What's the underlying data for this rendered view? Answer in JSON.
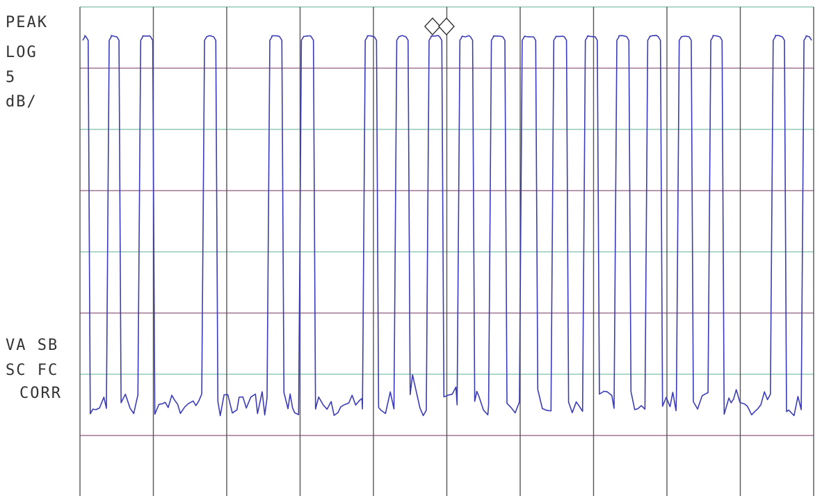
{
  "annotations": {
    "detector": "PEAK",
    "scale_mode": "LOG",
    "scale_value": "5",
    "scale_unit": "dB/",
    "status_1": "VA SB",
    "status_2": "SC FC",
    "status_3": "CORR"
  },
  "colors": {
    "trace": "#3b3bb8",
    "grid_vertical": "#555555",
    "grid_horizontal": "#8c5a7a",
    "grid_horizontal_tint": "#7fbfa8",
    "text": "#333333",
    "marker": "#333333"
  },
  "chart_data": {
    "type": "line",
    "divisions_x": 10,
    "divisions_y": 8,
    "scale_db_per_div": 5,
    "grid": true,
    "ylim": [
      0,
      40
    ],
    "marker": {
      "type": "double-diamond",
      "x_div": 4.9,
      "level_db": 0
    },
    "pulses": [
      {
        "start_div": 0.0,
        "end_div": 0.14,
        "level_db": 0
      },
      {
        "start_div": 0.36,
        "end_div": 0.56,
        "level_db": 0
      },
      {
        "start_div": 0.79,
        "end_div": 1.02,
        "level_db": 0
      },
      {
        "start_div": 1.66,
        "end_div": 1.88,
        "level_db": 0
      },
      {
        "start_div": 2.55,
        "end_div": 2.78,
        "level_db": 0
      },
      {
        "start_div": 2.98,
        "end_div": 3.21,
        "level_db": 0
      },
      {
        "start_div": 3.85,
        "end_div": 4.07,
        "level_db": 0
      },
      {
        "start_div": 4.28,
        "end_div": 4.5,
        "level_db": 0
      },
      {
        "start_div": 4.72,
        "end_div": 4.96,
        "level_db": 0
      },
      {
        "start_div": 5.14,
        "end_div": 5.38,
        "level_db": 0
      },
      {
        "start_div": 5.57,
        "end_div": 5.82,
        "level_db": 0
      },
      {
        "start_div": 5.99,
        "end_div": 6.24,
        "level_db": 0
      },
      {
        "start_div": 6.42,
        "end_div": 6.66,
        "level_db": 0
      },
      {
        "start_div": 6.85,
        "end_div": 7.08,
        "level_db": 0
      },
      {
        "start_div": 7.28,
        "end_div": 7.51,
        "level_db": 0
      },
      {
        "start_div": 7.7,
        "end_div": 7.94,
        "level_db": 0
      },
      {
        "start_div": 8.13,
        "end_div": 8.36,
        "level_db": 0
      },
      {
        "start_div": 8.56,
        "end_div": 8.78,
        "level_db": 0
      },
      {
        "start_div": 9.41,
        "end_div": 9.63,
        "level_db": 0
      },
      {
        "start_div": 9.83,
        "end_div": 10.0,
        "level_db": 0
      }
    ],
    "noise_floor_db": [
      29,
      31
    ]
  }
}
